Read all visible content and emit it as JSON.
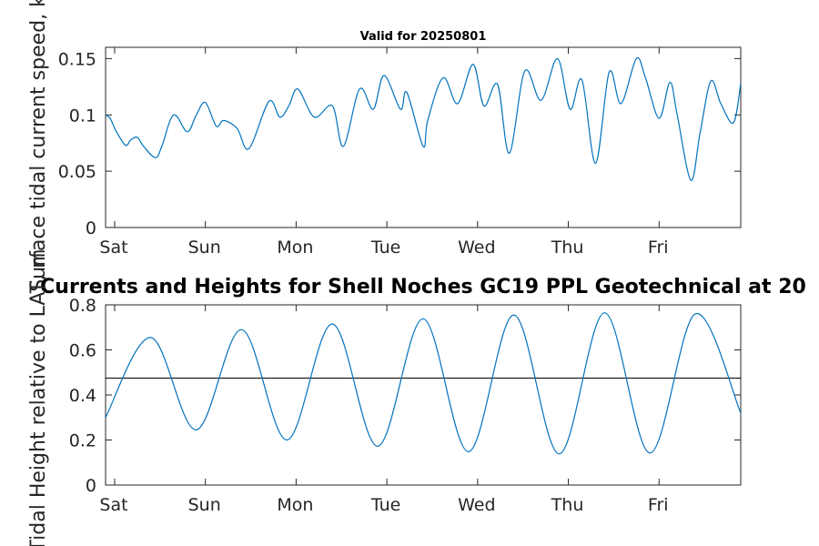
{
  "figure_title": "Currents and Heights for Shell Noches   GC19 PPL  Geotechnical at 20",
  "chart_data": [
    {
      "id": "speed",
      "type": "line",
      "title": "Valid for 20250801",
      "ylabel": "Surface tidal current speed, kn",
      "xlim": [
        0,
        7
      ],
      "ylim": [
        0,
        0.16
      ],
      "x_ticks": [
        0.1,
        1.1,
        2.1,
        3.1,
        4.1,
        5.1,
        6.1
      ],
      "x_tick_labels": [
        "Sat",
        "Sun",
        "Mon",
        "Tue",
        "Wed",
        "Thu",
        "Fri"
      ],
      "y_ticks": [
        0,
        0.05,
        0.1,
        0.15
      ],
      "y_tick_labels": [
        "0",
        "0.05",
        "0.1",
        "0.15"
      ],
      "series_color": "#0072BD",
      "series": [
        {
          "x": [
            0,
            0.05,
            0.12,
            0.22,
            0.28,
            0.35,
            0.42,
            0.55,
            0.62,
            0.75,
            0.9,
            1.0,
            1.1,
            1.22,
            1.3,
            1.45,
            1.58,
            1.8,
            1.92,
            2.02,
            2.12,
            2.3,
            2.5,
            2.62,
            2.8,
            2.95,
            3.07,
            3.25,
            3.32,
            3.5,
            3.55,
            3.72,
            3.88,
            4.05,
            4.17,
            4.32,
            4.45,
            4.62,
            4.8,
            4.98,
            5.12,
            5.25,
            5.4,
            5.55,
            5.68,
            5.85,
            5.95,
            6.1,
            6.22,
            6.3,
            6.45,
            6.55,
            6.67,
            6.78,
            6.92,
            7.0
          ],
          "y": [
            0.1,
            0.097,
            0.085,
            0.073,
            0.078,
            0.08,
            0.072,
            0.062,
            0.072,
            0.1,
            0.085,
            0.1,
            0.111,
            0.09,
            0.095,
            0.088,
            0.07,
            0.112,
            0.098,
            0.108,
            0.123,
            0.098,
            0.108,
            0.072,
            0.123,
            0.105,
            0.135,
            0.105,
            0.12,
            0.072,
            0.095,
            0.133,
            0.11,
            0.145,
            0.108,
            0.127,
            0.066,
            0.139,
            0.113,
            0.15,
            0.105,
            0.131,
            0.057,
            0.138,
            0.11,
            0.15,
            0.133,
            0.097,
            0.129,
            0.1,
            0.042,
            0.083,
            0.13,
            0.11,
            0.093,
            0.128
          ]
        }
      ]
    },
    {
      "id": "height",
      "type": "line",
      "ylabel": "Tidal Height relative to LAT, m",
      "xlim": [
        0,
        7
      ],
      "ylim": [
        0,
        0.8
      ],
      "x_ticks": [
        0.1,
        1.1,
        2.1,
        3.1,
        4.1,
        5.1,
        6.1
      ],
      "x_tick_labels": [
        "Sat",
        "Sun",
        "Mon",
        "Tue",
        "Wed",
        "Thu",
        "Fri"
      ],
      "y_ticks": [
        0,
        0.2,
        0.4,
        0.6,
        0.8
      ],
      "y_tick_labels": [
        "0",
        "0.2",
        "0.4",
        "0.6",
        "0.8"
      ],
      "series_color": "#0072BD",
      "reference_line": 0.475,
      "series": [
        {
          "x": [
            0,
            0.5,
            1.0,
            1.5,
            2.0,
            2.5,
            3.0,
            3.5,
            4.0,
            4.5,
            5.0,
            5.5,
            6.0,
            6.5,
            7.0
          ],
          "y": [
            0.3,
            0.655,
            0.245,
            0.69,
            0.2,
            0.715,
            0.172,
            0.738,
            0.148,
            0.755,
            0.138,
            0.765,
            0.142,
            0.76,
            0.32
          ]
        }
      ]
    }
  ]
}
